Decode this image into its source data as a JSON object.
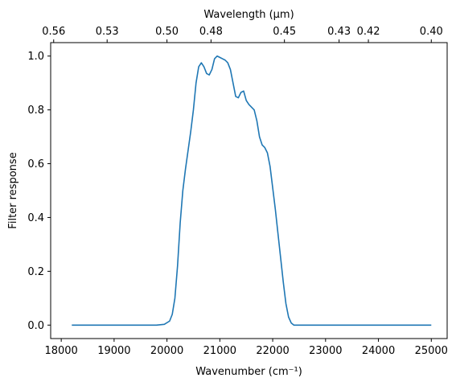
{
  "chart_data": {
    "type": "line",
    "title": "",
    "xlabel": "Wavenumber (cm⁻¹)",
    "ylabel": "Filter response",
    "top_xlabel": "Wavelength (μm)",
    "xlim": [
      17800,
      25300
    ],
    "ylim": [
      -0.05,
      1.05
    ],
    "x_ticks": [
      18000,
      19000,
      20000,
      21000,
      22000,
      23000,
      24000,
      25000
    ],
    "x_tick_labels": [
      "18000",
      "19000",
      "20000",
      "21000",
      "22000",
      "23000",
      "24000",
      "25000"
    ],
    "y_ticks": [
      0.0,
      0.2,
      0.4,
      0.6,
      0.8,
      1.0
    ],
    "y_tick_labels": [
      "0.0",
      "0.2",
      "0.4",
      "0.6",
      "0.8",
      "1.0"
    ],
    "top_ticks_wavenumber": [
      17857,
      18868,
      20000,
      20833,
      22222,
      23256,
      23810,
      25000
    ],
    "top_tick_labels": [
      "0.56",
      "0.53",
      "0.50",
      "0.48",
      "0.45",
      "0.43",
      "0.42",
      "0.40"
    ],
    "grid": false,
    "color": "#1f77b4",
    "series": [
      {
        "x": [
          18200,
          19000,
          19800,
          19950,
          20050,
          20100,
          20150,
          20200,
          20250,
          20300,
          20350,
          20400,
          20450,
          20500,
          20550,
          20600,
          20650,
          20700,
          20750,
          20800,
          20850,
          20900,
          20950,
          21000,
          21050,
          21100,
          21150,
          21200,
          21250,
          21300,
          21350,
          21400,
          21450,
          21500,
          21550,
          21600,
          21650,
          21700,
          21750,
          21800,
          21850,
          21900,
          21950,
          22000,
          22050,
          22100,
          22150,
          22200,
          22250,
          22300,
          22350,
          22400,
          22450,
          22500,
          22550,
          22600,
          22650,
          22700,
          22800,
          23500,
          25000
        ],
        "y": [
          0.0,
          0.0,
          0.0,
          0.003,
          0.015,
          0.04,
          0.1,
          0.22,
          0.38,
          0.5,
          0.58,
          0.65,
          0.72,
          0.8,
          0.9,
          0.96,
          0.975,
          0.96,
          0.935,
          0.93,
          0.95,
          0.99,
          1.0,
          0.995,
          0.99,
          0.985,
          0.975,
          0.95,
          0.9,
          0.85,
          0.845,
          0.865,
          0.87,
          0.835,
          0.82,
          0.81,
          0.8,
          0.76,
          0.7,
          0.67,
          0.66,
          0.64,
          0.59,
          0.51,
          0.43,
          0.34,
          0.25,
          0.16,
          0.08,
          0.03,
          0.008,
          0.0,
          0.0,
          0.0,
          0.0,
          0.0,
          0.0,
          0.0,
          0.0,
          0.0,
          0.0
        ]
      }
    ]
  }
}
